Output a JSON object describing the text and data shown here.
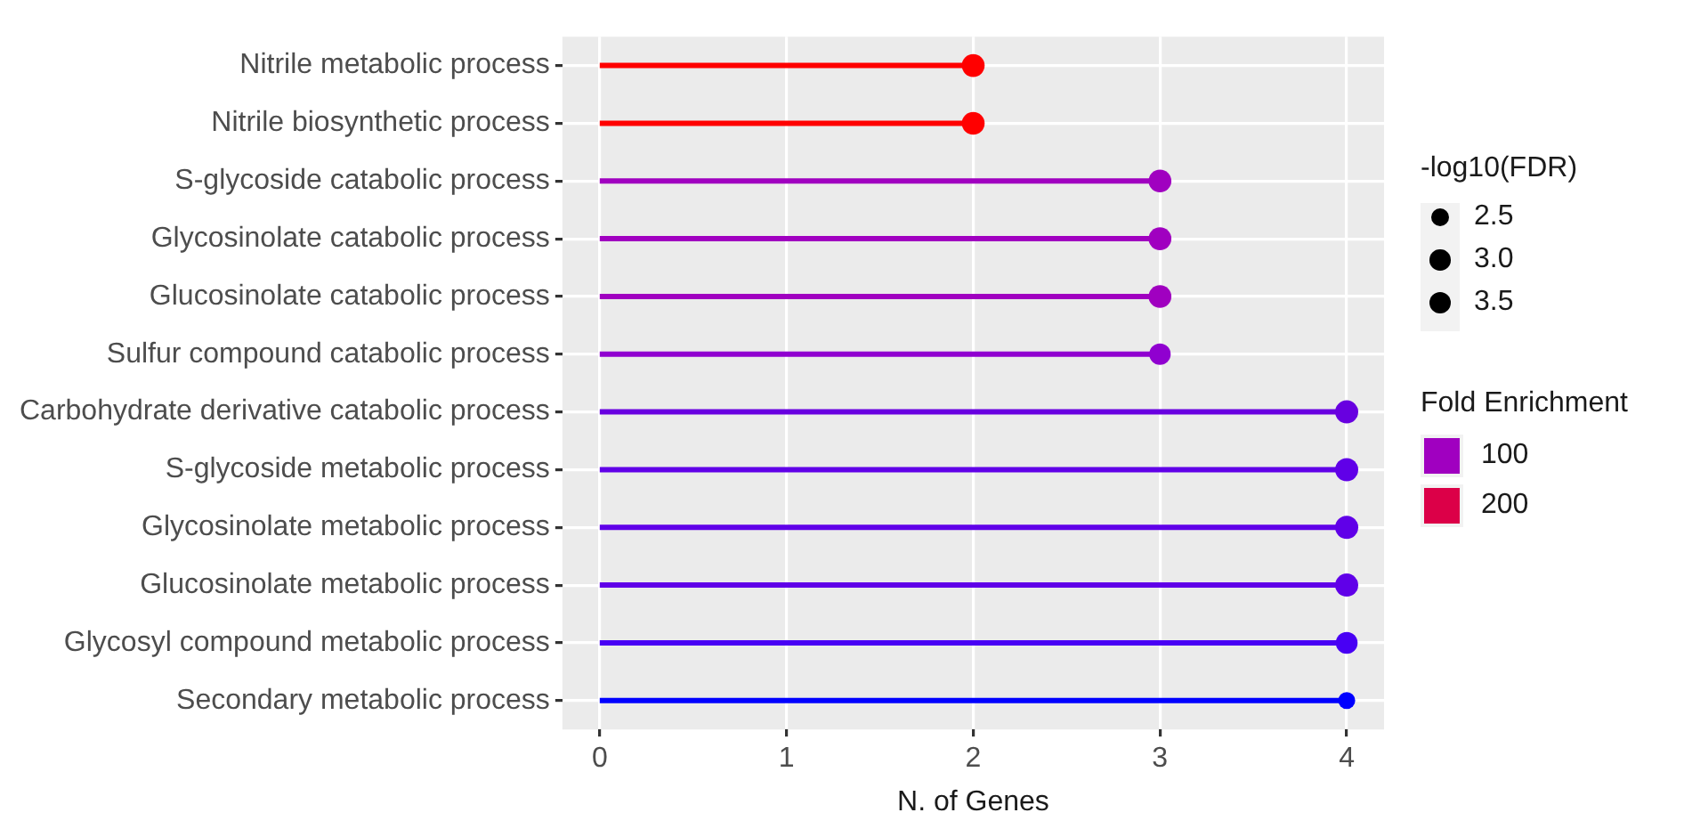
{
  "chart_data": {
    "type": "lollipop",
    "orientation": "horizontal",
    "xlabel": "N. of Genes",
    "categories": [
      "Nitrile metabolic process",
      "Nitrile biosynthetic process",
      "S-glycoside catabolic process",
      "Glycosinolate catabolic process",
      "Glucosinolate catabolic process",
      "Sulfur compound catabolic process",
      "Carbohydrate derivative catabolic process",
      "S-glycoside metabolic process",
      "Glycosinolate metabolic process",
      "Glucosinolate metabolic process",
      "Glycosyl compound metabolic process",
      "Secondary metabolic process"
    ],
    "values": [
      2,
      2,
      3,
      3,
      3,
      3,
      4,
      4,
      4,
      4,
      4,
      4
    ],
    "colors": [
      "#ff0000",
      "#ff0000",
      "#a000c0",
      "#a000c0",
      "#a000c0",
      "#9000d0",
      "#6800e0",
      "#6000e8",
      "#6000e8",
      "#6000e8",
      "#4800f4",
      "#0000ff"
    ],
    "sizes": [
      3.6,
      3.6,
      3.6,
      3.6,
      3.6,
      3.2,
      3.7,
      3.7,
      3.7,
      3.7,
      3.3,
      2.0
    ],
    "size_legend": [
      {
        "value": 2.5,
        "label": "2.5"
      },
      {
        "value": 3,
        "label": "3.0"
      },
      {
        "value": 3.5,
        "label": "3.5"
      }
    ],
    "legend_title": "-log10(FDR)",
    "clabel": "Fold Enrichment",
    "cticks": [
      100,
      200
    ],
    "xlim": [
      -0.2,
      4.2
    ],
    "xticks": [
      0,
      1,
      2,
      3,
      4
    ],
    "grid": true
  }
}
